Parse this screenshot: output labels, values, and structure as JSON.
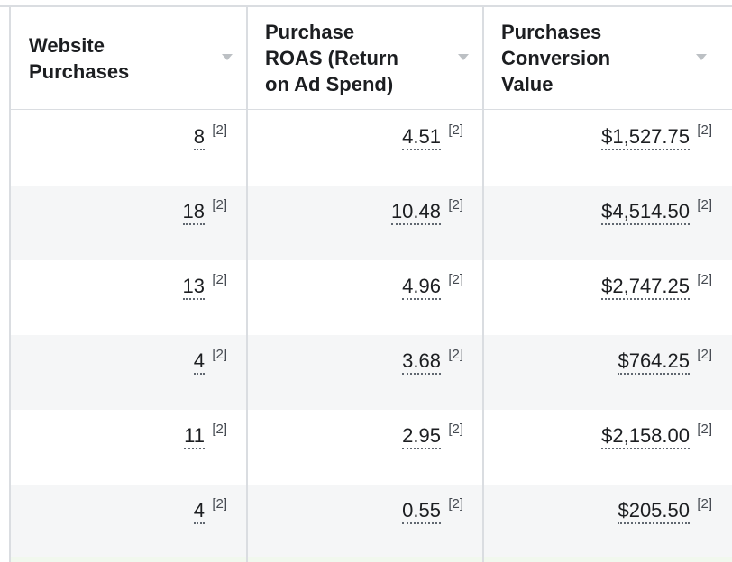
{
  "columns": [
    {
      "title_line1": "Website",
      "title_line2": "Purchases",
      "title_line3": ""
    },
    {
      "title_line1": "Purchase",
      "title_line2": "ROAS (Return",
      "title_line3": "on Ad Spend)"
    },
    {
      "title_line1": "Purchases",
      "title_line2": "Conversion",
      "title_line3": "Value"
    }
  ],
  "footnote": "[2]",
  "rows": [
    {
      "purchases": "8",
      "roas": "4.51",
      "value": "$1,527.75"
    },
    {
      "purchases": "18",
      "roas": "10.48",
      "value": "$4,514.50"
    },
    {
      "purchases": "13",
      "roas": "4.96",
      "value": "$2,747.25"
    },
    {
      "purchases": "4",
      "roas": "3.68",
      "value": "$764.25"
    },
    {
      "purchases": "11",
      "roas": "2.95",
      "value": "$2,158.00"
    },
    {
      "purchases": "4",
      "roas": "0.55",
      "value": "$205.50"
    }
  ],
  "icons": {
    "sort": "sort-caret-icon"
  }
}
